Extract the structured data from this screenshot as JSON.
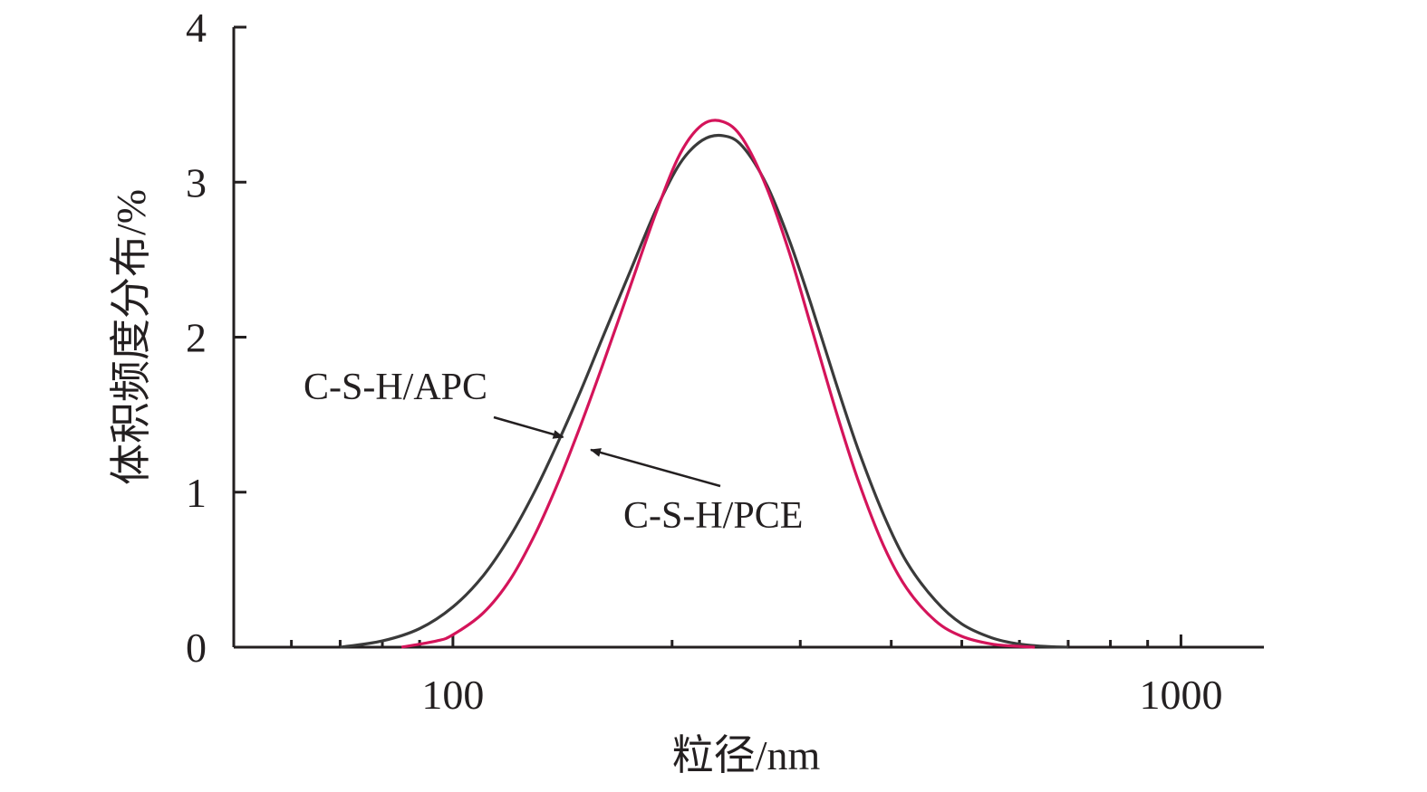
{
  "chart_data": {
    "type": "line",
    "title": "",
    "xlabel": "粒径/nm",
    "ylabel": "体积频度分布/%",
    "x_scale": "log",
    "xlim": [
      50,
      1300
    ],
    "ylim": [
      0,
      4
    ],
    "x_ticks": [
      {
        "value": 100,
        "label": "100"
      },
      {
        "value": 1000,
        "label": "1000"
      }
    ],
    "x_minor_ticks": [
      60,
      70,
      80,
      90,
      200,
      300,
      400,
      500,
      600,
      700,
      800,
      900
    ],
    "y_ticks": [
      {
        "value": 0,
        "label": "0"
      },
      {
        "value": 1,
        "label": "1"
      },
      {
        "value": 2,
        "label": "2"
      },
      {
        "value": 3,
        "label": "3"
      },
      {
        "value": 4,
        "label": "4"
      }
    ],
    "grid": false,
    "legend": "none",
    "series": [
      {
        "name": "C-S-H/APC",
        "color": "#3a3a3a",
        "x": [
          70,
          80,
          90,
          100,
          110,
          120,
          130,
          140,
          150,
          160,
          175,
          190,
          205,
          220,
          235,
          250,
          270,
          290,
          310,
          335,
          360,
          390,
          420,
          460,
          500,
          550,
          600,
          650,
          700
        ],
        "y": [
          0.0,
          0.04,
          0.12,
          0.26,
          0.46,
          0.72,
          1.02,
          1.34,
          1.66,
          1.98,
          2.42,
          2.82,
          3.12,
          3.27,
          3.3,
          3.23,
          2.98,
          2.62,
          2.22,
          1.72,
          1.28,
          0.86,
          0.55,
          0.3,
          0.15,
          0.06,
          0.02,
          0.005,
          0.0
        ]
      },
      {
        "name": "C-S-H/PCE",
        "color": "#d4145a",
        "x": [
          85,
          95,
          100,
          110,
          120,
          130,
          140,
          150,
          160,
          175,
          190,
          205,
          220,
          235,
          250,
          270,
          290,
          310,
          335,
          360,
          390,
          420,
          460,
          500,
          550,
          600,
          630
        ],
        "y": [
          0.0,
          0.04,
          0.08,
          0.22,
          0.44,
          0.74,
          1.08,
          1.44,
          1.8,
          2.32,
          2.8,
          3.18,
          3.37,
          3.39,
          3.28,
          2.96,
          2.54,
          2.08,
          1.54,
          1.08,
          0.66,
          0.38,
          0.17,
          0.07,
          0.02,
          0.005,
          0.0
        ]
      }
    ],
    "annotations": [
      {
        "text": "C-S-H/APC",
        "series": "C-S-H/APC",
        "point": {
          "x": 145,
          "y": 1.32
        }
      },
      {
        "text": "C-S-H/PCE",
        "series": "C-S-H/PCE",
        "point": {
          "x": 152,
          "y": 1.25
        }
      }
    ]
  }
}
